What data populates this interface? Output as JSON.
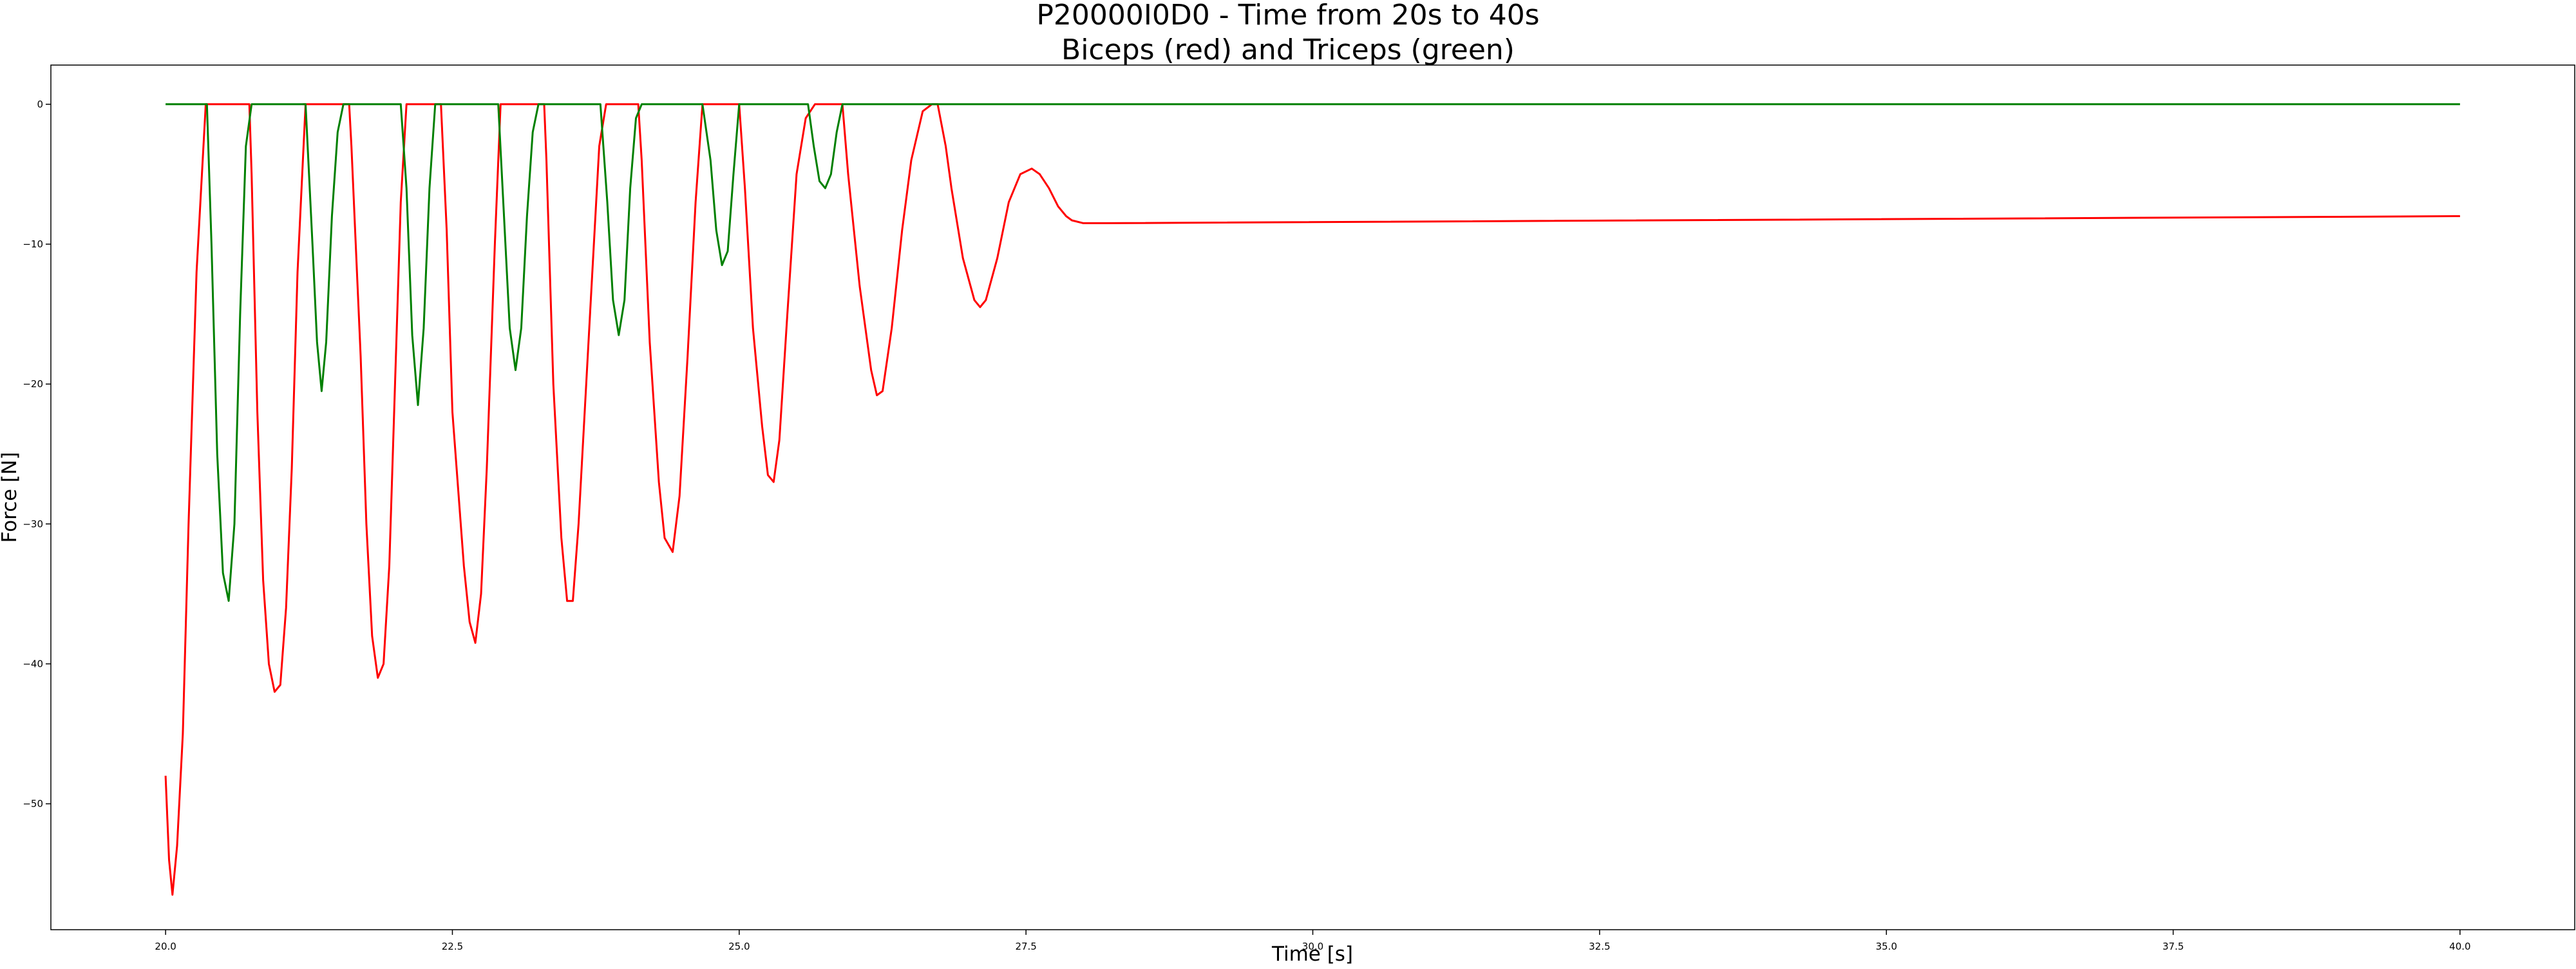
{
  "chart_data": {
    "type": "line",
    "title": "P20000I0D0 - Time from 20s to 40s",
    "subtitle": "Biceps (red) and Triceps (green)",
    "xlabel": "Time [s]",
    "ylabel": "Force [N]",
    "xlim": [
      19.0,
      41.0
    ],
    "ylim": [
      -59.0,
      2.8
    ],
    "xticks": [
      20.0,
      22.5,
      25.0,
      27.5,
      30.0,
      32.5,
      35.0,
      37.5,
      40.0
    ],
    "xtick_labels": [
      "20.0",
      "22.5",
      "25.0",
      "27.5",
      "30.0",
      "32.5",
      "35.0",
      "37.5",
      "40.0"
    ],
    "yticks": [
      0,
      -10,
      -20,
      -30,
      -40,
      -50
    ],
    "ytick_labels": [
      "0",
      "−10",
      "−20",
      "−30",
      "−40",
      "−50"
    ],
    "grid": false,
    "legend": "none",
    "colors": {
      "biceps": "#ff0000",
      "triceps": "#008000"
    },
    "series": [
      {
        "color": "#ff0000",
        "x": [
          20.0,
          20.03,
          20.06,
          20.1,
          20.15,
          20.2,
          20.27,
          20.35,
          20.37,
          20.73,
          20.75,
          20.8,
          20.85,
          20.9,
          20.95,
          21.0,
          21.05,
          21.1,
          21.15,
          21.22,
          21.2,
          21.25,
          21.55,
          21.6,
          21.62,
          21.7,
          21.75,
          21.8,
          21.85,
          21.9,
          21.95,
          22.0,
          22.05,
          22.1,
          22.13,
          22.4,
          22.45,
          22.5,
          22.6,
          22.65,
          22.7,
          22.75,
          22.8,
          22.87,
          22.92,
          22.98,
          23.3,
          23.32,
          23.38,
          23.45,
          23.5,
          23.55,
          23.6,
          23.7,
          23.78,
          23.84,
          24.12,
          24.15,
          24.22,
          24.3,
          24.35,
          24.42,
          24.48,
          24.55,
          24.62,
          24.68,
          25.0,
          25.05,
          25.12,
          25.2,
          25.25,
          25.3,
          25.35,
          25.42,
          25.5,
          25.58,
          25.66,
          25.9,
          25.95,
          26.05,
          26.15,
          26.2,
          26.25,
          26.33,
          26.42,
          26.5,
          26.6,
          26.68,
          26.73,
          26.8,
          26.85,
          26.95,
          27.05,
          27.1,
          27.15,
          27.25,
          27.35,
          27.45,
          27.55,
          27.62,
          27.7,
          27.78,
          27.85,
          27.9,
          28.0,
          28.1,
          28.2,
          40.0
        ],
        "y": [
          -48.0,
          -54.0,
          -56.5,
          -53.0,
          -45.0,
          -30.0,
          -12.0,
          0.0,
          0.0,
          0.0,
          -5.0,
          -22.0,
          -34.0,
          -40.0,
          -42.0,
          -41.5,
          -36.0,
          -26.0,
          -12.0,
          0.0,
          0.0,
          0.0,
          0.0,
          0.0,
          -3.0,
          -18.0,
          -30.0,
          -38.0,
          -41.0,
          -40.0,
          -33.0,
          -20.0,
          -7.0,
          0.0,
          0.0,
          0.0,
          -9.0,
          -22.0,
          -33.0,
          -37.0,
          -38.5,
          -35.0,
          -26.0,
          -10.0,
          0.0,
          0.0,
          0.0,
          -4.0,
          -20.0,
          -31.0,
          -35.5,
          -35.5,
          -30.0,
          -15.0,
          -3.0,
          0.0,
          0.0,
          -4.0,
          -17.0,
          -27.0,
          -31.0,
          -32.0,
          -28.0,
          -18.0,
          -7.0,
          0.0,
          0.0,
          -6.0,
          -16.0,
          -23.0,
          -26.5,
          -27.0,
          -24.0,
          -15.0,
          -5.0,
          -1.0,
          0.0,
          0.0,
          -5.0,
          -13.0,
          -19.0,
          -20.8,
          -20.5,
          -16.0,
          -9.0,
          -4.0,
          -0.5,
          0.0,
          0.0,
          -3.0,
          -6.0,
          -11.0,
          -14.0,
          -14.5,
          -14.0,
          -11.0,
          -7.0,
          -5.0,
          -4.6,
          -5.0,
          -6.0,
          -7.3,
          -8.0,
          -8.3,
          -8.5,
          -8.5,
          -8.5,
          -8.0
        ]
      },
      {
        "color": "#008000",
        "x": [
          20.0,
          20.36,
          20.4,
          20.45,
          20.5,
          20.55,
          20.6,
          20.65,
          20.7,
          20.75,
          20.8,
          21.22,
          21.28,
          21.32,
          21.36,
          21.4,
          21.45,
          21.5,
          21.55,
          21.58,
          22.05,
          22.1,
          22.15,
          22.2,
          22.25,
          22.3,
          22.35,
          22.4,
          22.45,
          22.9,
          22.95,
          23.0,
          23.05,
          23.1,
          23.15,
          23.2,
          23.25,
          23.3,
          23.79,
          23.85,
          23.9,
          23.95,
          24.0,
          24.05,
          24.1,
          24.15,
          24.2,
          24.68,
          24.75,
          24.8,
          24.85,
          24.9,
          24.95,
          25.0,
          25.6,
          25.65,
          25.7,
          25.75,
          25.8,
          25.85,
          25.9,
          26.7,
          40.0
        ],
        "y": [
          0.0,
          0.0,
          -10.0,
          -25.0,
          -33.5,
          -35.5,
          -30.0,
          -15.0,
          -3.0,
          0.0,
          0.0,
          0.0,
          -10.0,
          -17.0,
          -20.5,
          -17.0,
          -8.0,
          -2.0,
          0.0,
          0.0,
          0.0,
          -6.0,
          -16.5,
          -21.5,
          -16.0,
          -6.0,
          0.0,
          0.0,
          0.0,
          0.0,
          -8.0,
          -16.0,
          -19.0,
          -16.0,
          -8.0,
          -2.0,
          0.0,
          0.0,
          0.0,
          -7.0,
          -14.0,
          -16.5,
          -14.0,
          -6.0,
          -1.0,
          0.0,
          0.0,
          0.0,
          -4.0,
          -9.0,
          -11.5,
          -10.5,
          -5.0,
          0.0,
          0.0,
          -3.0,
          -5.5,
          -6.0,
          -5.0,
          -2.0,
          0.0,
          0.0,
          0.0
        ]
      }
    ]
  }
}
